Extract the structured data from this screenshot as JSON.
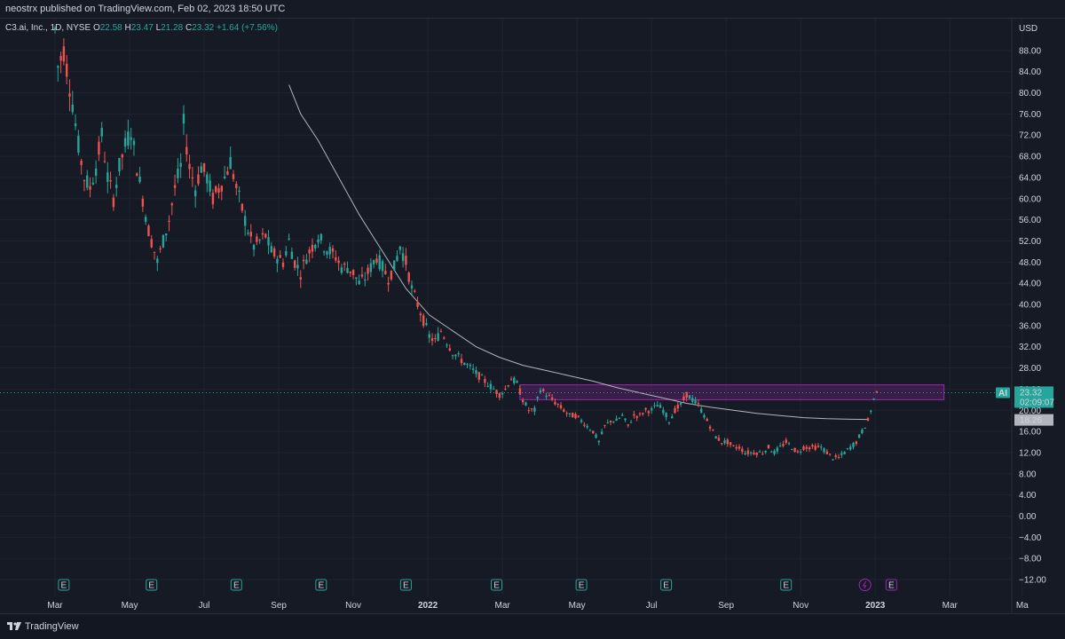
{
  "header": {
    "publish_line": "neostrx published on TradingView.com, Feb 02, 2023 18:50 UTC"
  },
  "legend": {
    "name": "C3.ai, Inc., 1D, NYSE",
    "o_label": "O",
    "o_value": "22.58",
    "h_label": "H",
    "h_value": "23.47",
    "l_label": "L",
    "l_value": "21.28",
    "c_label": "C",
    "c_value": "23.32",
    "change": "+1.64 (+7.56%)"
  },
  "footer": {
    "brand": "TradingView"
  },
  "colors": {
    "up": "#26a69a",
    "down": "#ef5350",
    "ma": "#b2b5be",
    "zone": "#9c27b0",
    "background": "#161a25"
  },
  "chart_data": {
    "type": "candlestick",
    "symbol": "AI",
    "currency": "USD",
    "y_ticks": [
      -12,
      -8,
      -4,
      0,
      4,
      8,
      12,
      16,
      20,
      24,
      28,
      32,
      36,
      40,
      44,
      48,
      52,
      56,
      60,
      64,
      68,
      72,
      76,
      80,
      84,
      88
    ],
    "y_tick_labels": [
      "−12.00",
      "−8.00",
      "−4.00",
      "0.00",
      "4.00",
      "8.00",
      "12.00",
      "16.00",
      "20.00",
      "24.00",
      "28.00",
      "32.00",
      "36.00",
      "40.00",
      "44.00",
      "48.00",
      "52.00",
      "56.00",
      "60.00",
      "64.00",
      "68.00",
      "72.00",
      "76.00",
      "80.00",
      "84.00",
      "88.00"
    ],
    "ylim": [
      -13,
      92
    ],
    "x_labels": [
      "Mar",
      "May",
      "Jul",
      "Sep",
      "Nov",
      "2022",
      "Mar",
      "May",
      "Jul",
      "Sep",
      "Nov",
      "2023",
      "Mar",
      "Ma"
    ],
    "bold_x_labels": [
      "2022",
      "2023"
    ],
    "last_price": {
      "symbol": "AI",
      "price": "23.32",
      "countdown": "02:09:07"
    },
    "ma_label": "18.26",
    "price_path": [
      [
        0,
        92
      ],
      [
        1,
        85
      ],
      [
        3,
        88
      ],
      [
        6,
        78
      ],
      [
        8,
        70
      ],
      [
        10,
        64
      ],
      [
        12,
        62
      ],
      [
        14,
        66
      ],
      [
        16,
        72
      ],
      [
        18,
        64
      ],
      [
        20,
        60
      ],
      [
        22,
        66
      ],
      [
        24,
        70
      ],
      [
        26,
        73
      ],
      [
        28,
        66
      ],
      [
        30,
        60
      ],
      [
        32,
        54
      ],
      [
        34,
        50
      ],
      [
        35,
        48
      ],
      [
        37,
        52
      ],
      [
        39,
        56
      ],
      [
        41,
        62
      ],
      [
        43,
        66
      ],
      [
        44,
        74
      ],
      [
        46,
        66
      ],
      [
        48,
        62
      ],
      [
        50,
        66
      ],
      [
        52,
        64
      ],
      [
        54,
        60
      ],
      [
        56,
        62
      ],
      [
        58,
        64
      ],
      [
        60,
        67
      ],
      [
        62,
        62
      ],
      [
        64,
        58
      ],
      [
        66,
        54
      ],
      [
        68,
        51
      ],
      [
        70,
        52
      ],
      [
        72,
        53
      ],
      [
        74,
        50
      ],
      [
        76,
        49
      ],
      [
        78,
        48
      ],
      [
        80,
        52
      ],
      [
        82,
        48
      ],
      [
        84,
        46
      ],
      [
        86,
        49
      ],
      [
        88,
        51
      ],
      [
        90,
        53
      ],
      [
        92,
        51
      ],
      [
        94,
        50
      ],
      [
        96,
        49
      ],
      [
        98,
        47
      ],
      [
        100,
        47
      ],
      [
        102,
        46
      ],
      [
        104,
        44
      ],
      [
        106,
        45
      ],
      [
        108,
        47
      ],
      [
        110,
        49
      ],
      [
        112,
        47
      ],
      [
        114,
        45
      ],
      [
        116,
        47
      ],
      [
        118,
        51
      ],
      [
        120,
        48
      ],
      [
        122,
        43
      ],
      [
        124,
        40
      ],
      [
        126,
        37
      ],
      [
        128,
        34
      ],
      [
        130,
        33
      ],
      [
        132,
        35
      ],
      [
        134,
        33
      ],
      [
        136,
        31
      ],
      [
        138,
        30
      ],
      [
        140,
        29
      ],
      [
        142,
        28
      ],
      [
        144,
        27
      ],
      [
        146,
        26
      ],
      [
        148,
        25
      ],
      [
        150,
        24
      ],
      [
        152,
        23
      ],
      [
        154,
        24
      ],
      [
        156,
        26
      ],
      [
        158,
        25
      ],
      [
        160,
        22
      ],
      [
        162,
        20
      ],
      [
        164,
        20
      ],
      [
        166,
        24
      ],
      [
        168,
        23
      ],
      [
        170,
        22
      ],
      [
        172,
        21
      ],
      [
        174,
        20
      ],
      [
        176,
        19
      ],
      [
        178,
        19
      ],
      [
        180,
        18
      ],
      [
        182,
        17
      ],
      [
        184,
        16
      ],
      [
        186,
        14
      ],
      [
        188,
        17
      ],
      [
        190,
        18
      ],
      [
        192,
        18
      ],
      [
        194,
        19
      ],
      [
        196,
        17
      ],
      [
        198,
        19
      ],
      [
        200,
        19
      ],
      [
        202,
        20
      ],
      [
        204,
        20
      ],
      [
        206,
        21
      ],
      [
        208,
        20
      ],
      [
        210,
        18
      ],
      [
        212,
        20
      ],
      [
        214,
        21
      ],
      [
        216,
        23
      ],
      [
        218,
        22
      ],
      [
        220,
        21
      ],
      [
        222,
        19
      ],
      [
        224,
        17
      ],
      [
        226,
        15
      ],
      [
        228,
        14
      ],
      [
        230,
        14
      ],
      [
        232,
        13
      ],
      [
        234,
        13
      ],
      [
        236,
        12
      ],
      [
        238,
        12
      ],
      [
        240,
        12
      ],
      [
        242,
        12
      ],
      [
        244,
        13
      ],
      [
        246,
        12
      ],
      [
        248,
        13
      ],
      [
        250,
        14
      ],
      [
        252,
        13
      ],
      [
        254,
        12
      ],
      [
        256,
        13
      ],
      [
        258,
        13
      ],
      [
        260,
        13
      ],
      [
        262,
        13
      ],
      [
        264,
        12
      ],
      [
        266,
        11
      ],
      [
        268,
        11
      ],
      [
        270,
        12
      ],
      [
        272,
        13
      ],
      [
        274,
        14
      ],
      [
        276,
        16
      ],
      [
        278,
        18
      ],
      [
        280,
        22
      ],
      [
        281,
        23.32
      ]
    ],
    "moving_average": [
      [
        80,
        81.5
      ],
      [
        84,
        76
      ],
      [
        90,
        71
      ],
      [
        96,
        65
      ],
      [
        104,
        57
      ],
      [
        112,
        50
      ],
      [
        120,
        43
      ],
      [
        128,
        38
      ],
      [
        136,
        35
      ],
      [
        144,
        32
      ],
      [
        152,
        30
      ],
      [
        160,
        28.5
      ],
      [
        168,
        27.5
      ],
      [
        176,
        26.5
      ],
      [
        184,
        25.5
      ],
      [
        192,
        24.3
      ],
      [
        200,
        23.3
      ],
      [
        208,
        22.3
      ],
      [
        216,
        21.3
      ],
      [
        224,
        20.6
      ],
      [
        232,
        20
      ],
      [
        240,
        19.4
      ],
      [
        248,
        19
      ],
      [
        256,
        18.6
      ],
      [
        264,
        18.4
      ],
      [
        272,
        18.3
      ],
      [
        278,
        18.26
      ]
    ],
    "resistance_zone": {
      "low": 22.0,
      "high": 24.8,
      "x_start": 159,
      "x_end": 304
    },
    "earnings_markers": [
      3,
      33,
      62,
      91,
      120,
      151,
      180,
      209,
      250
    ],
    "upcoming_markers": [
      {
        "x": 277,
        "kind": "dividend"
      },
      {
        "x": 286,
        "kind": "earnings"
      }
    ]
  }
}
